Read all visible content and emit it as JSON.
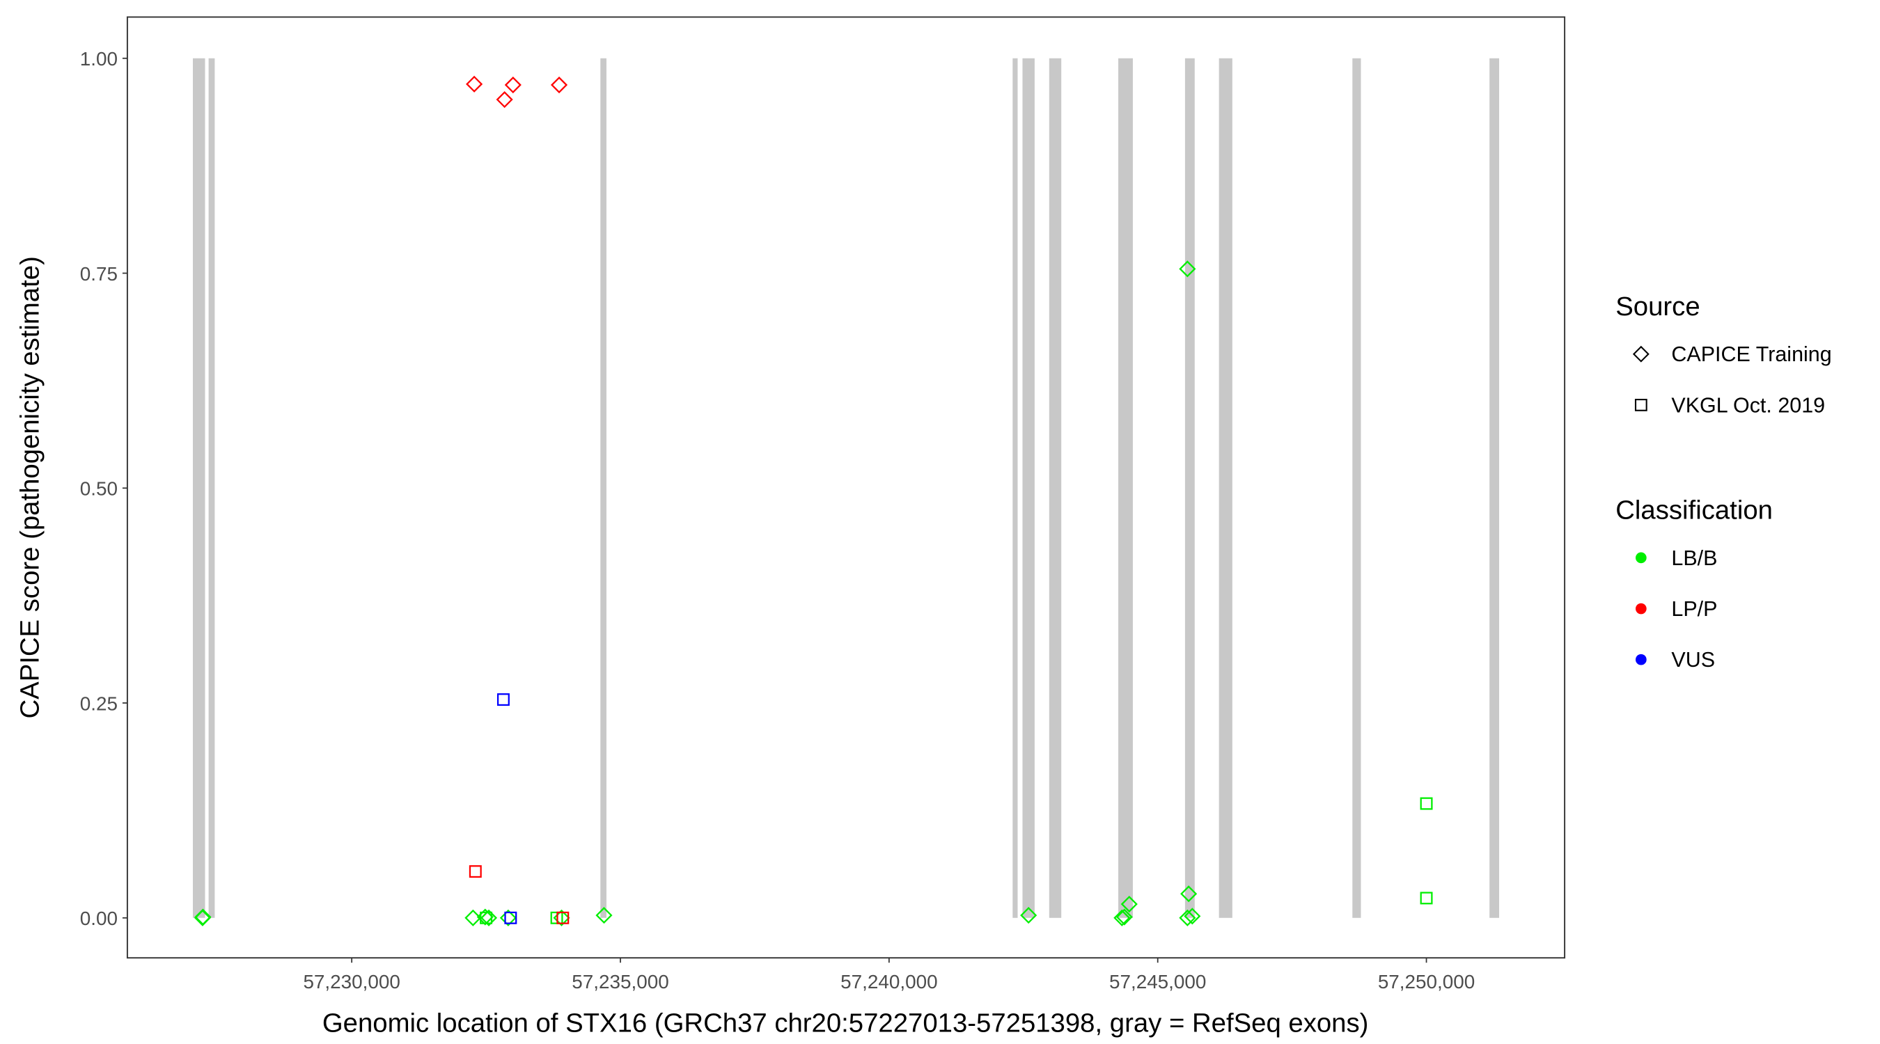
{
  "chart_data": {
    "type": "scatter",
    "title": "",
    "xlabel": "Genomic location of STX16 (GRCh37 chr20:57227013-57251398, gray = RefSeq exons)",
    "ylabel": "CAPICE score (pathogenicity estimate)",
    "xlim": [
      57225824,
      57252573
    ],
    "ylim": [
      -0.0465,
      1.048
    ],
    "x_ticks": [
      57230000,
      57235000,
      57240000,
      57245000,
      57250000
    ],
    "x_tick_labels": [
      "57,230,000",
      "57,235,000",
      "57,240,000",
      "57,245,000",
      "57,250,000"
    ],
    "y_ticks": [
      0,
      0.25,
      0.5,
      0.75,
      1.0
    ],
    "y_tick_labels": [
      "0.00",
      "0.25",
      "0.50",
      "0.75",
      "1.00"
    ],
    "grid": false,
    "legend_placement": "right",
    "exon_color": "#c8c8c8",
    "exons": [
      [
        57227043,
        57227270
      ],
      [
        57227336,
        57227450
      ],
      [
        57234628,
        57234740
      ],
      [
        57242300,
        57242393
      ],
      [
        57242483,
        57242709
      ],
      [
        57242980,
        57243205
      ],
      [
        57244266,
        57244537
      ],
      [
        57245508,
        57245688
      ],
      [
        57246140,
        57246388
      ],
      [
        57248623,
        57248781
      ],
      [
        57251174,
        57251354
      ]
    ],
    "legends": {
      "source": {
        "title": "Source",
        "items": [
          {
            "label": "CAPICE Training",
            "shape": "diamond"
          },
          {
            "label": "VKGL Oct. 2019",
            "shape": "square"
          }
        ]
      },
      "classification": {
        "title": "Classification",
        "items": [
          {
            "label": "LB/B",
            "color": "#00ee00"
          },
          {
            "label": "LP/P",
            "color": "#ff0000"
          },
          {
            "label": "VUS",
            "color": "#0000ff"
          }
        ]
      }
    },
    "points": [
      {
        "x": 57232280,
        "y": 0.97,
        "source": "CAPICE Training",
        "class": "LP/P"
      },
      {
        "x": 57232844,
        "y": 0.952,
        "source": "CAPICE Training",
        "class": "LP/P"
      },
      {
        "x": 57233002,
        "y": 0.969,
        "source": "CAPICE Training",
        "class": "LP/P"
      },
      {
        "x": 57233860,
        "y": 0.969,
        "source": "CAPICE Training",
        "class": "LP/P"
      },
      {
        "x": 57245553,
        "y": 0.755,
        "source": "CAPICE Training",
        "class": "LB/B"
      },
      {
        "x": 57232822,
        "y": 0.254,
        "source": "VKGL Oct. 2019",
        "class": "VUS"
      },
      {
        "x": 57232302,
        "y": 0.054,
        "source": "VKGL Oct. 2019",
        "class": "LP/P"
      },
      {
        "x": 57250000,
        "y": 0.133,
        "source": "VKGL Oct. 2019",
        "class": "LB/B"
      },
      {
        "x": 57250000,
        "y": 0.023,
        "source": "VKGL Oct. 2019",
        "class": "LB/B"
      },
      {
        "x": 57227224,
        "y": 0.0,
        "source": "CAPICE Training",
        "class": "LB/B"
      },
      {
        "x": 57227230,
        "y": 0.001,
        "source": "CAPICE Training",
        "class": "LB/B"
      },
      {
        "x": 57232257,
        "y": 0.0,
        "source": "CAPICE Training",
        "class": "LB/B"
      },
      {
        "x": 57232483,
        "y": 0.001,
        "source": "CAPICE Training",
        "class": "LB/B"
      },
      {
        "x": 57232551,
        "y": 0.0,
        "source": "CAPICE Training",
        "class": "LB/B"
      },
      {
        "x": 57232500,
        "y": 0.0,
        "source": "VKGL Oct. 2019",
        "class": "LB/B"
      },
      {
        "x": 57232912,
        "y": 0.0,
        "source": "CAPICE Training",
        "class": "LB/B"
      },
      {
        "x": 57232957,
        "y": 0.0,
        "source": "VKGL Oct. 2019",
        "class": "VUS"
      },
      {
        "x": 57233815,
        "y": 0.0,
        "source": "VKGL Oct. 2019",
        "class": "LB/B"
      },
      {
        "x": 57233905,
        "y": 0.0,
        "source": "CAPICE Training",
        "class": "LB/B"
      },
      {
        "x": 57233928,
        "y": 0.0,
        "source": "VKGL Oct. 2019",
        "class": "LP/P"
      },
      {
        "x": 57234695,
        "y": 0.003,
        "source": "CAPICE Training",
        "class": "LB/B"
      },
      {
        "x": 57242596,
        "y": 0.003,
        "source": "CAPICE Training",
        "class": "LB/B"
      },
      {
        "x": 57244334,
        "y": 0.0,
        "source": "CAPICE Training",
        "class": "LB/B"
      },
      {
        "x": 57244379,
        "y": 0.001,
        "source": "CAPICE Training",
        "class": "LB/B"
      },
      {
        "x": 57244470,
        "y": 0.016,
        "source": "CAPICE Training",
        "class": "LB/B"
      },
      {
        "x": 57245553,
        "y": 0.0,
        "source": "CAPICE Training",
        "class": "LB/B"
      },
      {
        "x": 57245576,
        "y": 0.028,
        "source": "CAPICE Training",
        "class": "LB/B"
      },
      {
        "x": 57245643,
        "y": 0.002,
        "source": "CAPICE Training",
        "class": "LB/B"
      }
    ]
  }
}
